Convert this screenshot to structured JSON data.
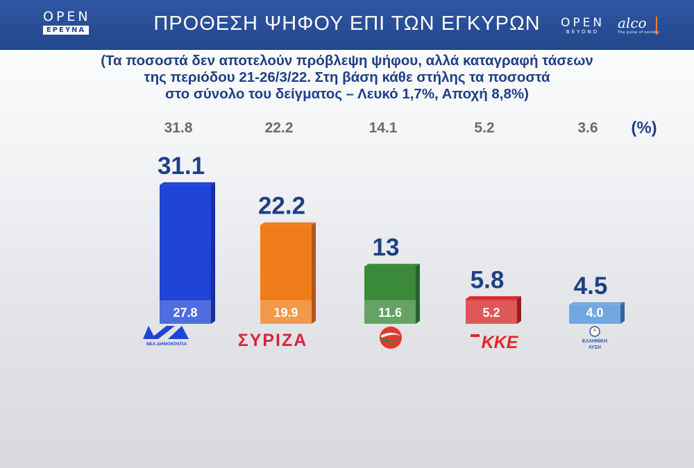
{
  "header": {
    "brand_left": "OPEN",
    "brand_left_sub": "ΕΡΕΥΝΑ",
    "title": "ΠΡΟΘΕΣΗ ΨΗΦΟΥ ΕΠΙ ΤΩΝ ΕΓΚΥΡΩΝ",
    "brand_right": "OPEN",
    "brand_right_sub": "BEYOND",
    "alco": "alco",
    "alco_tag": "The pulse of society"
  },
  "subtitle": [
    "(Τα ποσοστά δεν αποτελούν πρόβλεψη ψήφου, αλλά καταγραφή τάσεων",
    "της περιόδου 21-26/3/22. Στη βάση κάθε στήλης τα ποσοστά",
    "στο σύνολο του δείγματος – Λευκό 1,7%, Αποχή 8,8%)"
  ],
  "chart_data": {
    "type": "bar",
    "unit_label": "(%)",
    "ylim": [
      0,
      35
    ],
    "categories": [
      "ΝΔ",
      "ΣΥΡΙΖΑ",
      "ΚΙΝΑΛ",
      "ΚΚΕ",
      "ΕΛΛΗΝΙΚΗ ΛΥΣΗ"
    ],
    "series": [
      {
        "values": [
          31.1,
          22.2,
          13,
          5.8,
          4.5
        ]
      },
      {
        "values": [
          27.8,
          19.9,
          11.6,
          5.2,
          4.0
        ]
      },
      {
        "values": [
          31.8,
          22.2,
          14.1,
          5.2,
          3.6
        ]
      }
    ],
    "value_labels": {
      "main": [
        "31.1",
        "22.2",
        "13",
        "5.8",
        "4.5"
      ],
      "base": [
        "27.8",
        "19.9",
        "11.6",
        "5.2",
        "4.0"
      ],
      "previous": [
        "31.8",
        "22.2",
        "14.1",
        "5.2",
        "3.6"
      ]
    },
    "colors": [
      "#1f44d6",
      "#f07d1a",
      "#3a8a3a",
      "#d62a2a",
      "#4a8fd9"
    ],
    "party_logo_text": [
      "ΝΔ",
      "ΝΕΑ ΔΗΜΟΚΡΑΤΙΑ",
      "ΣΥΡΙΖΑ",
      "ΚΚΕ",
      "ΕΛΛΗΝΙΚΗ",
      "ΛΥΣΗ"
    ]
  }
}
